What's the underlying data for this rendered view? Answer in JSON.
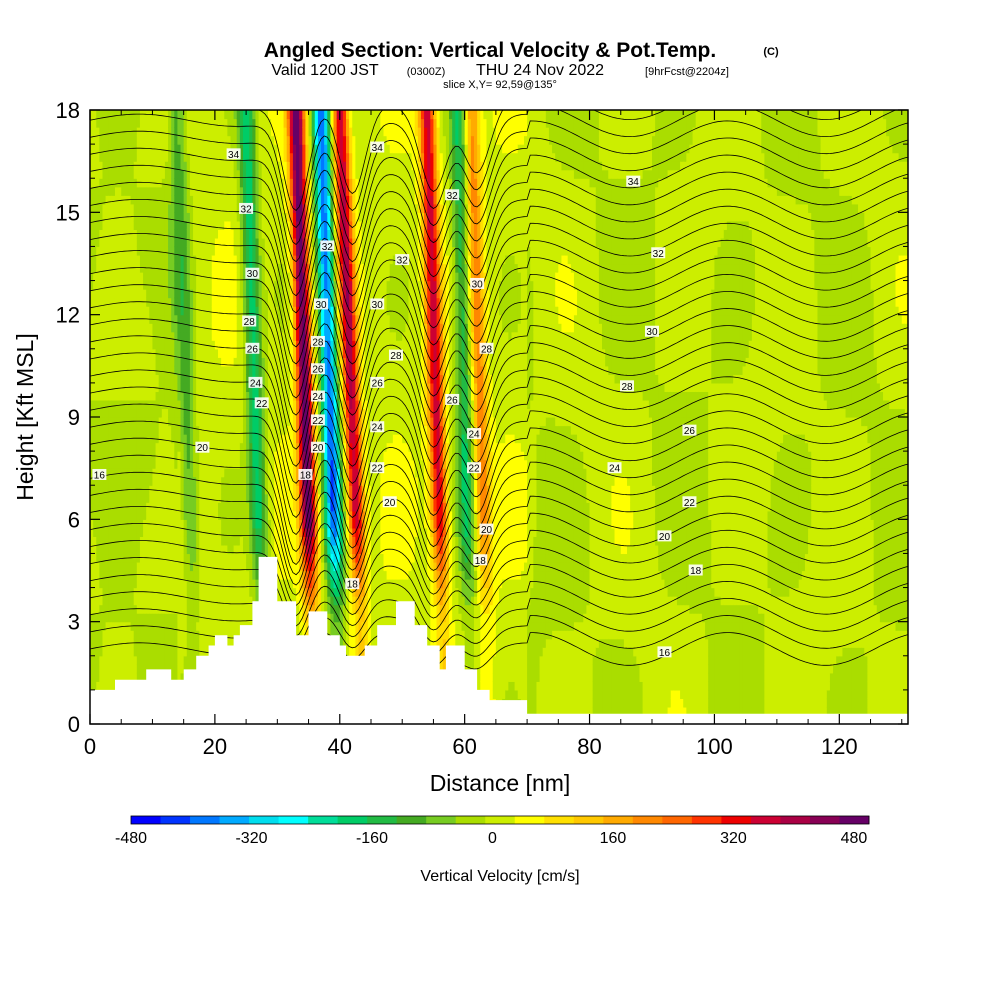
{
  "title": {
    "main": "Angled Section: Vertical Velocity & Pot.Temp.",
    "main_suffix": "(C)",
    "valid_prefix": "Valid 1200 JST",
    "valid_utc": "(0300Z)",
    "valid_date": "THU 24 Nov 2022",
    "forecast": "[9hrFcst@2204z]",
    "slice": "slice X,Y= 92,59@135°"
  },
  "chart_data": {
    "type": "heatmap",
    "xlabel": "Distance [nm]",
    "ylabel": "Height [Kft MSL]",
    "xlim": [
      0,
      131
    ],
    "ylim": [
      0,
      18
    ],
    "xticks": [
      "0",
      "20",
      "40",
      "60",
      "80",
      "100",
      "120"
    ],
    "yticks": [
      "0",
      "3",
      "6",
      "9",
      "12",
      "15",
      "18"
    ],
    "colorbar": {
      "label": "Vertical Velocity [cm/s]",
      "range": [
        -480,
        500
      ],
      "tick_labels": [
        "-480",
        "-320",
        "-160",
        "0",
        "160",
        "320",
        "480"
      ],
      "colors": [
        "#0000ff",
        "#0033ff",
        "#0077ff",
        "#00aaff",
        "#00ddee",
        "#00ffff",
        "#00dd99",
        "#00cc66",
        "#22bb44",
        "#44aa22",
        "#77cc22",
        "#aadd00",
        "#ccee00",
        "#ffff00",
        "#ffe000",
        "#ffc800",
        "#ffaa00",
        "#ff8800",
        "#ff6600",
        "#ff3300",
        "#ee0000",
        "#cc0033",
        "#aa0044",
        "#880055",
        "#660066"
      ]
    },
    "updraft_bands": [
      {
        "x_bottom_nm": 36,
        "x_top_nm": 33,
        "peak_cm_s": 480
      },
      {
        "x_bottom_nm": 44,
        "x_top_nm": 40,
        "peak_cm_s": 380
      },
      {
        "x_bottom_nm": 57,
        "x_top_nm": 54,
        "peak_cm_s": 350
      },
      {
        "x_bottom_nm": 64,
        "x_top_nm": 61,
        "peak_cm_s": 200
      }
    ],
    "downdraft_bands": [
      {
        "x_bottom_nm": 40,
        "x_top_nm": 37,
        "peak_cm_s": -400
      },
      {
        "x_bottom_nm": 28,
        "x_top_nm": 25,
        "peak_cm_s": -200
      },
      {
        "x_bottom_nm": 17,
        "x_top_nm": 14,
        "peak_cm_s": -120
      },
      {
        "x_bottom_nm": 61,
        "x_top_nm": 59,
        "peak_cm_s": -180
      }
    ],
    "terrain": [
      [
        0,
        1.0
      ],
      [
        4,
        1.0
      ],
      [
        4,
        1.3
      ],
      [
        9,
        1.3
      ],
      [
        9,
        1.6
      ],
      [
        13,
        1.6
      ],
      [
        13,
        1.3
      ],
      [
        15,
        1.3
      ],
      [
        15,
        1.6
      ],
      [
        17,
        1.6
      ],
      [
        17,
        2.0
      ],
      [
        19,
        2.0
      ],
      [
        19,
        2.3
      ],
      [
        20,
        2.3
      ],
      [
        20,
        2.6
      ],
      [
        22,
        2.6
      ],
      [
        22,
        2.3
      ],
      [
        23,
        2.3
      ],
      [
        23,
        2.6
      ],
      [
        24,
        2.6
      ],
      [
        24,
        2.9
      ],
      [
        26,
        2.9
      ],
      [
        26,
        3.6
      ],
      [
        27,
        3.6
      ],
      [
        27,
        4.9
      ],
      [
        30,
        4.9
      ],
      [
        30,
        3.6
      ],
      [
        33,
        3.6
      ],
      [
        33,
        2.6
      ],
      [
        35,
        2.6
      ],
      [
        35,
        3.3
      ],
      [
        38,
        3.3
      ],
      [
        38,
        2.6
      ],
      [
        40,
        2.6
      ],
      [
        40,
        2.3
      ],
      [
        41,
        2.3
      ],
      [
        41,
        2.0
      ],
      [
        44,
        2.0
      ],
      [
        44,
        2.3
      ],
      [
        46,
        2.3
      ],
      [
        46,
        2.9
      ],
      [
        49,
        2.9
      ],
      [
        49,
        3.6
      ],
      [
        52,
        3.6
      ],
      [
        52,
        2.9
      ],
      [
        54,
        2.9
      ],
      [
        54,
        2.3
      ],
      [
        56,
        2.3
      ],
      [
        56,
        1.6
      ],
      [
        57,
        1.6
      ],
      [
        57,
        2.3
      ],
      [
        60,
        2.3
      ],
      [
        60,
        1.6
      ],
      [
        62,
        1.6
      ],
      [
        62,
        1.0
      ],
      [
        64,
        1.0
      ],
      [
        64,
        0.7
      ],
      [
        70,
        0.7
      ],
      [
        70,
        0.3
      ],
      [
        131,
        0.3
      ]
    ],
    "theta_contours": [
      {
        "label": "16",
        "lx_nm": 92,
        "ly_kft": 2.1
      },
      {
        "label": "16",
        "lx_nm": 1.5,
        "ly_kft": 7.3
      },
      {
        "label": "18",
        "lx_nm": 34.5,
        "ly_kft": 7.3
      },
      {
        "label": "18",
        "lx_nm": 42,
        "ly_kft": 4.1
      },
      {
        "label": "18",
        "lx_nm": 62.5,
        "ly_kft": 4.8
      },
      {
        "label": "18",
        "lx_nm": 97,
        "ly_kft": 4.5
      },
      {
        "label": "20",
        "lx_nm": 18,
        "ly_kft": 8.1
      },
      {
        "label": "20",
        "lx_nm": 36.5,
        "ly_kft": 8.1
      },
      {
        "label": "20",
        "lx_nm": 48,
        "ly_kft": 6.5
      },
      {
        "label": "20",
        "lx_nm": 63.5,
        "ly_kft": 5.7
      },
      {
        "label": "20",
        "lx_nm": 92,
        "ly_kft": 5.5
      },
      {
        "label": "22",
        "lx_nm": 27.5,
        "ly_kft": 9.4
      },
      {
        "label": "22",
        "lx_nm": 36.5,
        "ly_kft": 8.9
      },
      {
        "label": "22",
        "lx_nm": 46,
        "ly_kft": 7.5
      },
      {
        "label": "22",
        "lx_nm": 61.5,
        "ly_kft": 7.5
      },
      {
        "label": "22",
        "lx_nm": 96,
        "ly_kft": 6.5
      },
      {
        "label": "24",
        "lx_nm": 26.5,
        "ly_kft": 10.0
      },
      {
        "label": "24",
        "lx_nm": 36.5,
        "ly_kft": 9.6
      },
      {
        "label": "24",
        "lx_nm": 46,
        "ly_kft": 8.7
      },
      {
        "label": "24",
        "lx_nm": 61.5,
        "ly_kft": 8.5
      },
      {
        "label": "24",
        "lx_nm": 84,
        "ly_kft": 7.5
      },
      {
        "label": "26",
        "lx_nm": 26,
        "ly_kft": 11.0
      },
      {
        "label": "26",
        "lx_nm": 36.5,
        "ly_kft": 10.4
      },
      {
        "label": "26",
        "lx_nm": 46,
        "ly_kft": 10.0
      },
      {
        "label": "26",
        "lx_nm": 58,
        "ly_kft": 9.5
      },
      {
        "label": "26",
        "lx_nm": 96,
        "ly_kft": 8.6
      },
      {
        "label": "28",
        "lx_nm": 25.5,
        "ly_kft": 11.8
      },
      {
        "label": "28",
        "lx_nm": 36.5,
        "ly_kft": 11.2
      },
      {
        "label": "28",
        "lx_nm": 49,
        "ly_kft": 10.8
      },
      {
        "label": "28",
        "lx_nm": 63.5,
        "ly_kft": 11.0
      },
      {
        "label": "28",
        "lx_nm": 86,
        "ly_kft": 9.9
      },
      {
        "label": "30",
        "lx_nm": 26,
        "ly_kft": 13.2
      },
      {
        "label": "30",
        "lx_nm": 37,
        "ly_kft": 12.3
      },
      {
        "label": "30",
        "lx_nm": 46,
        "ly_kft": 12.3
      },
      {
        "label": "30",
        "lx_nm": 62,
        "ly_kft": 12.9
      },
      {
        "label": "30",
        "lx_nm": 90,
        "ly_kft": 11.5
      },
      {
        "label": "32",
        "lx_nm": 25,
        "ly_kft": 15.1
      },
      {
        "label": "32",
        "lx_nm": 38,
        "ly_kft": 14.0
      },
      {
        "label": "32",
        "lx_nm": 50,
        "ly_kft": 13.6
      },
      {
        "label": "32",
        "lx_nm": 58,
        "ly_kft": 15.5
      },
      {
        "label": "32",
        "lx_nm": 91,
        "ly_kft": 13.8
      },
      {
        "label": "34",
        "lx_nm": 23,
        "ly_kft": 16.7
      },
      {
        "label": "34",
        "lx_nm": 46,
        "ly_kft": 16.9
      },
      {
        "label": "34",
        "lx_nm": 87,
        "ly_kft": 15.9
      }
    ]
  }
}
